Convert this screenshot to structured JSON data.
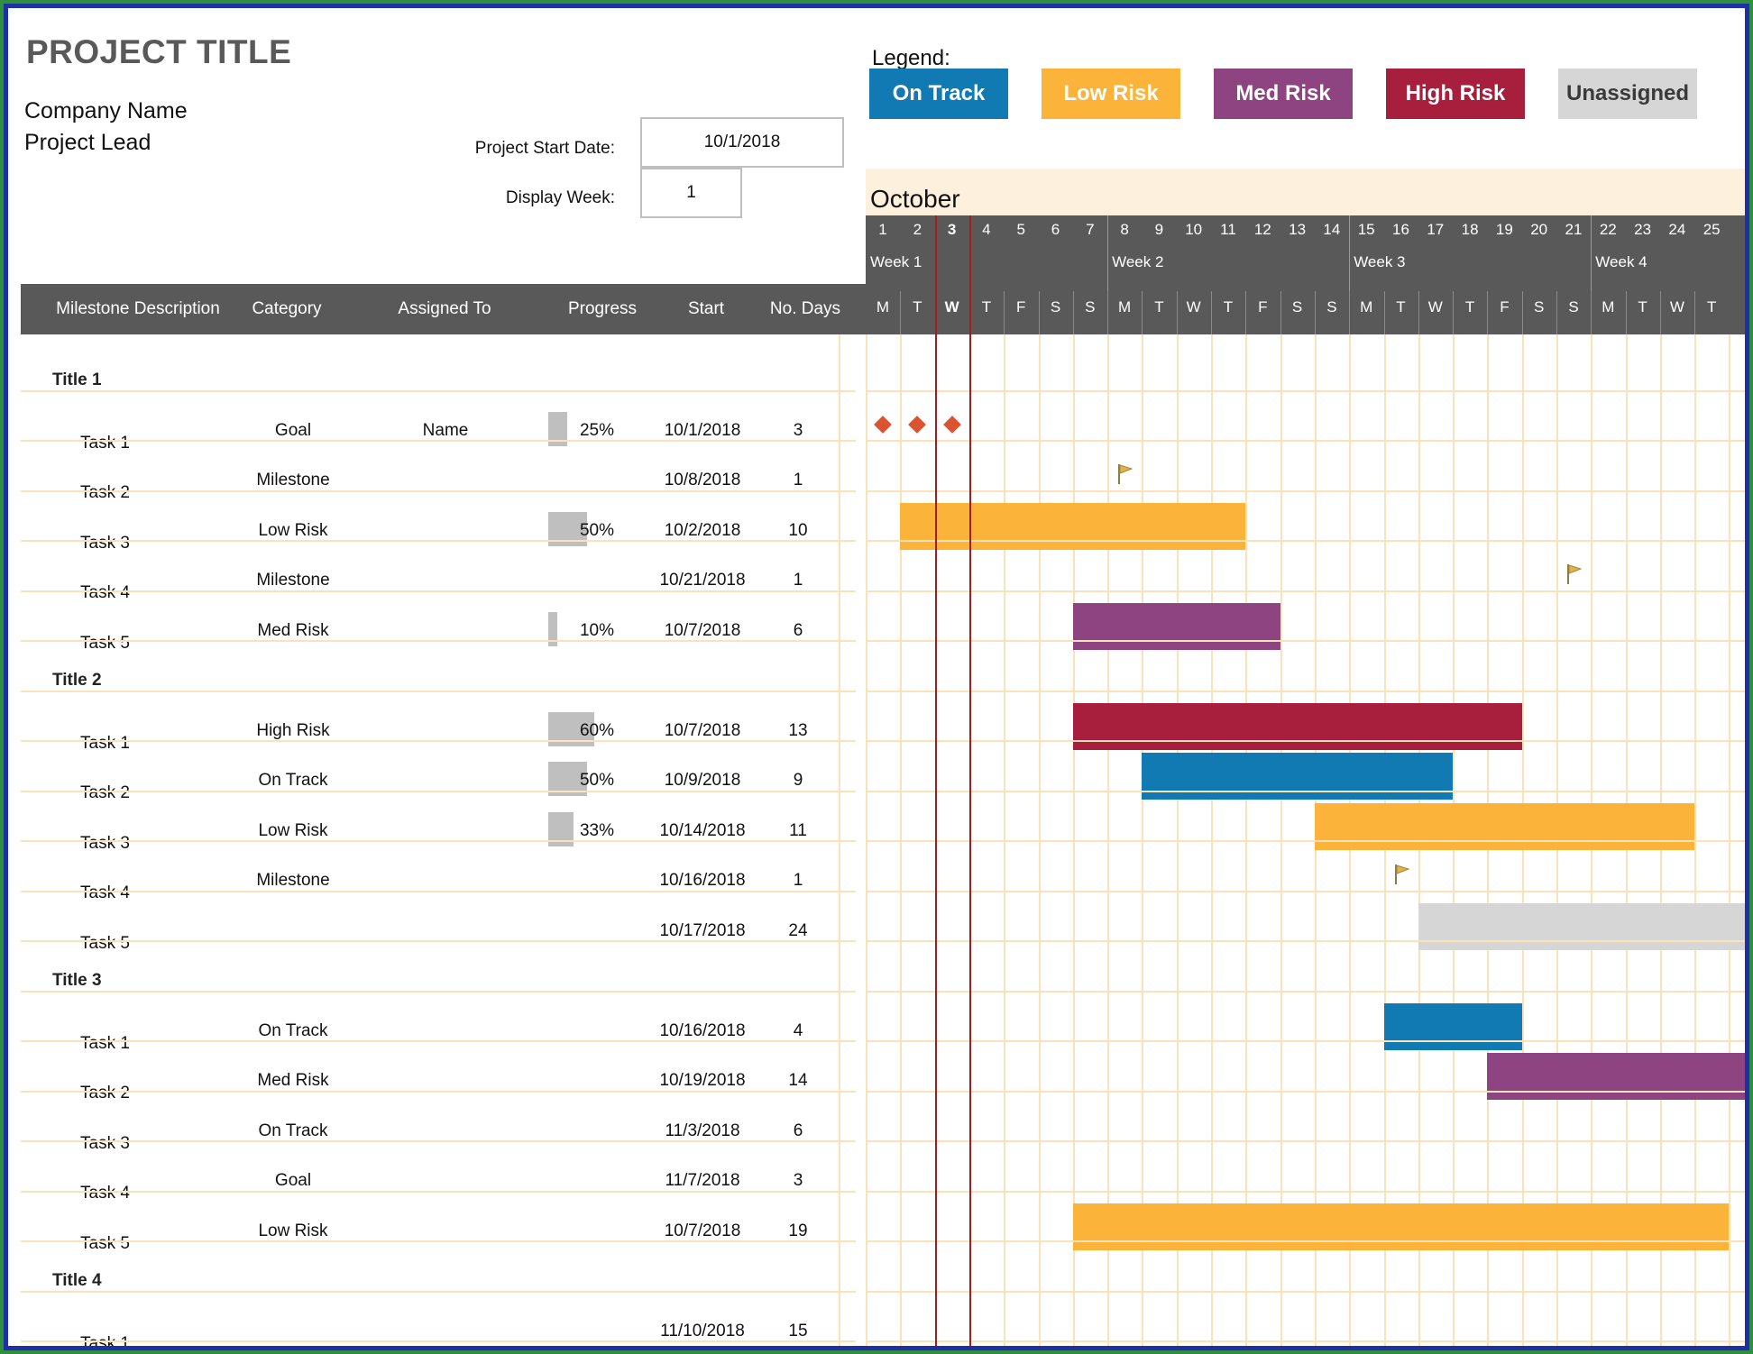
{
  "header": {
    "title": "PROJECT TITLE",
    "company": "Company Name",
    "lead": "Project Lead",
    "start_label": "Project Start Date:",
    "start_value": "10/1/2018",
    "week_label": "Display Week:",
    "week_value": "1"
  },
  "legend": {
    "title": "Legend:",
    "items": [
      {
        "label": "On Track",
        "color": "#117ab3"
      },
      {
        "label": "Low Risk",
        "color": "#fbb33a"
      },
      {
        "label": "Med Risk",
        "color": "#8e4480"
      },
      {
        "label": "High Risk",
        "color": "#a81f3d"
      },
      {
        "label": "Unassigned",
        "color": "#d6d6d6"
      }
    ]
  },
  "columns": {
    "milestone": "Milestone Description",
    "category": "Category",
    "assigned": "Assigned To",
    "progress": "Progress",
    "start": "Start",
    "days": "No. Days"
  },
  "timeline": {
    "month": "October",
    "days": [
      "1",
      "2",
      "3",
      "4",
      "5",
      "6",
      "7",
      "8",
      "9",
      "10",
      "11",
      "12",
      "13",
      "14",
      "15",
      "16",
      "17",
      "18",
      "19",
      "20",
      "21",
      "22",
      "23",
      "24",
      "25"
    ],
    "dows": [
      "M",
      "T",
      "W",
      "T",
      "F",
      "S",
      "S",
      "M",
      "T",
      "W",
      "T",
      "F",
      "S",
      "S",
      "M",
      "T",
      "W",
      "T",
      "F",
      "S",
      "S",
      "M",
      "T",
      "W",
      "T"
    ],
    "weeks": [
      "Week 1",
      "Week 2",
      "Week 3",
      "Week 4"
    ],
    "today_day": "3"
  },
  "groups": [
    {
      "title": "Title 1",
      "tasks": [
        {
          "name": "Task 1",
          "category": "Goal",
          "assigned": "Name",
          "progress": "25%",
          "progress_value": 0.25,
          "start": "10/1/2018",
          "days": "3"
        },
        {
          "name": "Task 2",
          "category": "Milestone",
          "assigned": "",
          "progress": "",
          "start": "10/8/2018",
          "days": "1"
        },
        {
          "name": "Task 3",
          "category": "Low Risk",
          "assigned": "",
          "progress": "50%",
          "progress_value": 0.5,
          "start": "10/2/2018",
          "days": "10"
        },
        {
          "name": "Task 4",
          "category": "Milestone",
          "assigned": "",
          "progress": "",
          "start": "10/21/2018",
          "days": "1"
        },
        {
          "name": "Task 5",
          "category": "Med Risk",
          "assigned": "",
          "progress": "10%",
          "progress_value": 0.1,
          "start": "10/7/2018",
          "days": "6"
        }
      ]
    },
    {
      "title": "Title 2",
      "tasks": [
        {
          "name": "Task 1",
          "category": "High Risk",
          "assigned": "",
          "progress": "60%",
          "progress_value": 0.6,
          "start": "10/7/2018",
          "days": "13"
        },
        {
          "name": "Task 2",
          "category": "On Track",
          "assigned": "",
          "progress": "50%",
          "progress_value": 0.5,
          "start": "10/9/2018",
          "days": "9"
        },
        {
          "name": "Task 3",
          "category": "Low Risk",
          "assigned": "",
          "progress": "33%",
          "progress_value": 0.33,
          "start": "10/14/2018",
          "days": "11"
        },
        {
          "name": "Task 4",
          "category": "Milestone",
          "assigned": "",
          "progress": "",
          "start": "10/16/2018",
          "days": "1"
        },
        {
          "name": "Task 5",
          "category": "",
          "assigned": "",
          "progress": "",
          "start": "10/17/2018",
          "days": "24"
        }
      ]
    },
    {
      "title": "Title 3",
      "tasks": [
        {
          "name": "Task 1",
          "category": "On Track",
          "assigned": "",
          "progress": "",
          "start": "10/16/2018",
          "days": "4"
        },
        {
          "name": "Task 2",
          "category": "Med Risk",
          "assigned": "",
          "progress": "",
          "start": "10/19/2018",
          "days": "14"
        },
        {
          "name": "Task 3",
          "category": "On Track",
          "assigned": "",
          "progress": "",
          "start": "11/3/2018",
          "days": "6"
        },
        {
          "name": "Task 4",
          "category": "Goal",
          "assigned": "",
          "progress": "",
          "start": "11/7/2018",
          "days": "3"
        },
        {
          "name": "Task 5",
          "category": "Low Risk",
          "assigned": "",
          "progress": "",
          "start": "10/7/2018",
          "days": "19"
        }
      ]
    },
    {
      "title": "Title 4",
      "tasks": [
        {
          "name": "Task 1",
          "category": "",
          "assigned": "",
          "progress": "",
          "start": "11/10/2018",
          "days": "15"
        }
      ]
    }
  ]
}
